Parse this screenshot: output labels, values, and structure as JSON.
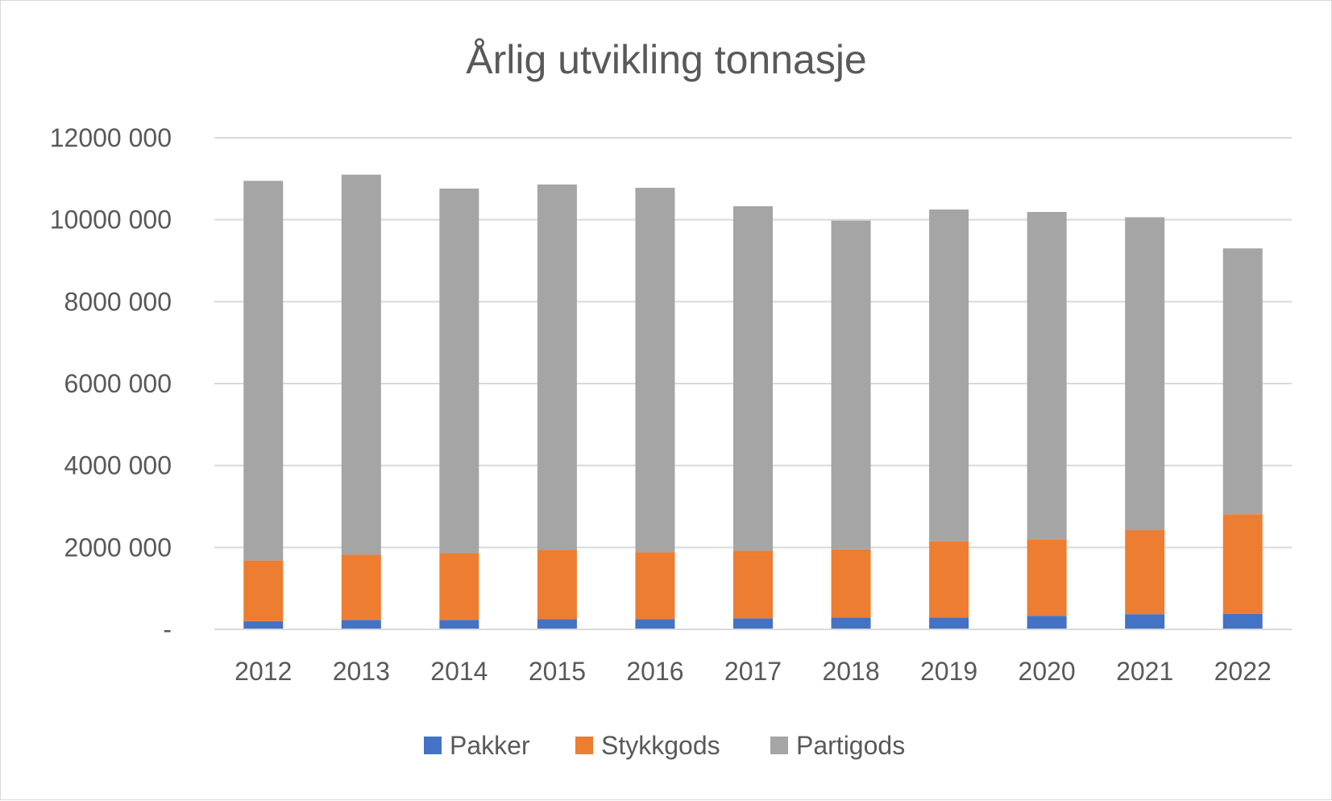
{
  "chart_data": {
    "type": "bar",
    "stacked": true,
    "title": "Årlig utvikling tonnasje",
    "xlabel": "",
    "ylabel": "",
    "ylim": [
      0,
      12000000
    ],
    "y_ticks": [
      0,
      2000000,
      4000000,
      6000000,
      8000000,
      10000000,
      12000000
    ],
    "y_tick_labels": [
      "-",
      "2000 000",
      "4000 000",
      "6000 000",
      "8000 000",
      "10000 000",
      "12000 000"
    ],
    "grid": true,
    "legend_position": "bottom",
    "categories": [
      "2012",
      "2013",
      "2014",
      "2015",
      "2016",
      "2017",
      "2018",
      "2019",
      "2020",
      "2021",
      "2022"
    ],
    "series": [
      {
        "name": "Pakker",
        "color": "#4472c4",
        "values": [
          200000,
          230000,
          230000,
          250000,
          250000,
          270000,
          290000,
          290000,
          330000,
          370000,
          380000
        ]
      },
      {
        "name": "Stykkgods",
        "color": "#ed7d31",
        "values": [
          1480000,
          1590000,
          1630000,
          1690000,
          1630000,
          1650000,
          1660000,
          1860000,
          1870000,
          2050000,
          2430000
        ]
      },
      {
        "name": "Partigods",
        "color": "#a5a5a5",
        "values": [
          9270000,
          9280000,
          8900000,
          8920000,
          8900000,
          8410000,
          8030000,
          8100000,
          7990000,
          7640000,
          6490000
        ]
      }
    ]
  }
}
